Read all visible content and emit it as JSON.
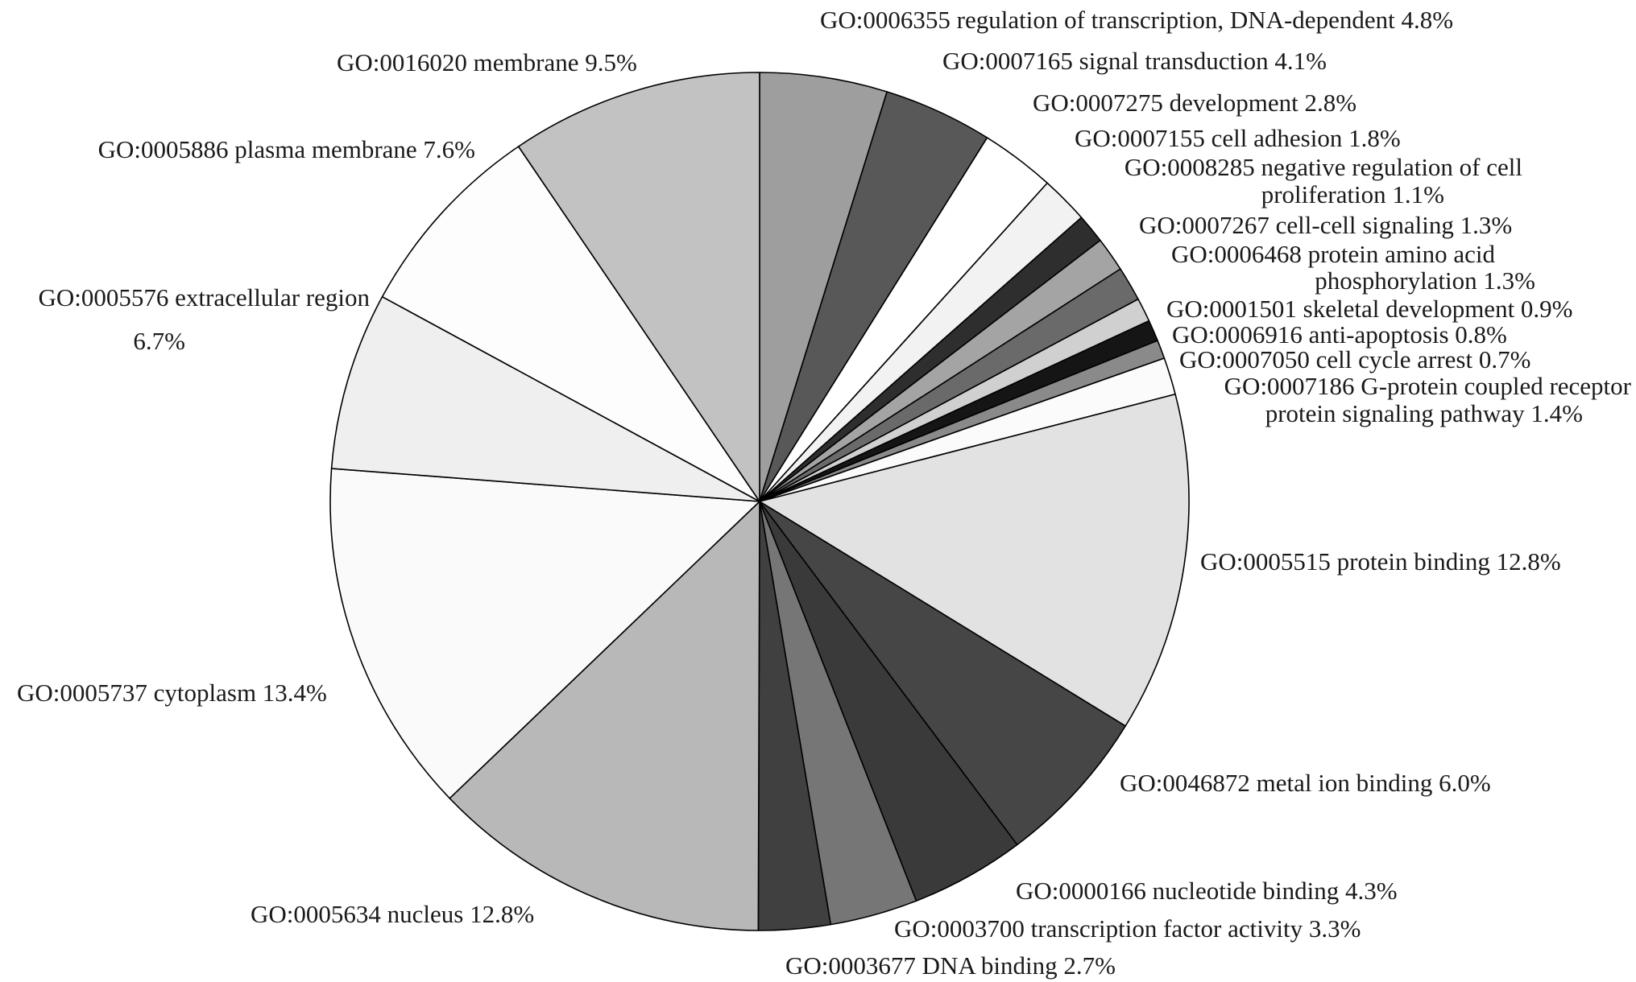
{
  "chart_data": {
    "type": "pie",
    "title": "",
    "unit": "%",
    "start_angle_deg": 0,
    "direction": "clockwise",
    "legend": "none",
    "slices": [
      {
        "label": "GO:0006355 regulation of transcription, DNA-dependent 4.8%",
        "value": 4.8,
        "color": "#9e9e9e"
      },
      {
        "label": "GO:0007165 signal transduction 4.1%",
        "value": 4.1,
        "color": "#585858"
      },
      {
        "label": "GO:0007275 development 2.8%",
        "value": 2.8,
        "color": "#ffffff"
      },
      {
        "label": "GO:0007155 cell adhesion 1.8%",
        "value": 1.8,
        "color": "#f2f2f2"
      },
      {
        "label": "GO:0008285 negative regulation of cell proliferation 1.1%",
        "value": 1.1,
        "color": "#2e2e2e"
      },
      {
        "label": "GO:0007267 cell-cell signaling 1.3%",
        "value": 1.3,
        "color": "#a4a4a4"
      },
      {
        "label": "GO:0006468 protein amino acid phosphorylation 1.3%",
        "value": 1.3,
        "color": "#6a6a6a"
      },
      {
        "label": "GO:0001501 skeletal development 0.9%",
        "value": 0.9,
        "color": "#d0d0d0"
      },
      {
        "label": "GO:0006916 anti-apoptosis 0.8%",
        "value": 0.8,
        "color": "#151515"
      },
      {
        "label": "GO:0007050 cell cycle arrest 0.7%",
        "value": 0.7,
        "color": "#8a8a8a"
      },
      {
        "label": "GO:0007186 G-protein coupled receptor protein signaling pathway 1.4%",
        "value": 1.4,
        "color": "#fbfbfb"
      },
      {
        "label": "GO:0005515 protein binding 12.8%",
        "value": 12.8,
        "color": "#e2e2e2"
      },
      {
        "label": "GO:0046872 metal ion binding 6.0%",
        "value": 6.0,
        "color": "#464646"
      },
      {
        "label": "GO:0000166 nucleotide binding 4.3%",
        "value": 4.3,
        "color": "#3a3a3a"
      },
      {
        "label": "GO:0003700 transcription factor activity 3.3%",
        "value": 3.3,
        "color": "#767676"
      },
      {
        "label": "GO:0003677 DNA binding 2.7%",
        "value": 2.7,
        "color": "#404040"
      },
      {
        "label": "GO:0005634 nucleus 12.8%",
        "value": 12.8,
        "color": "#b8b8b8"
      },
      {
        "label": "GO:0005737 cytoplasm 13.4%",
        "value": 13.4,
        "color": "#fafafa"
      },
      {
        "label": "GO:0005576 extracellular region 6.7%",
        "value": 6.7,
        "color": "#efefef"
      },
      {
        "label": "GO:0005886 plasma membrane 7.6%",
        "value": 7.6,
        "color": "#fdfdfd"
      },
      {
        "label": "GO:0016020 membrane 9.5%",
        "value": 9.5,
        "color": "#c2c2c2"
      }
    ]
  }
}
